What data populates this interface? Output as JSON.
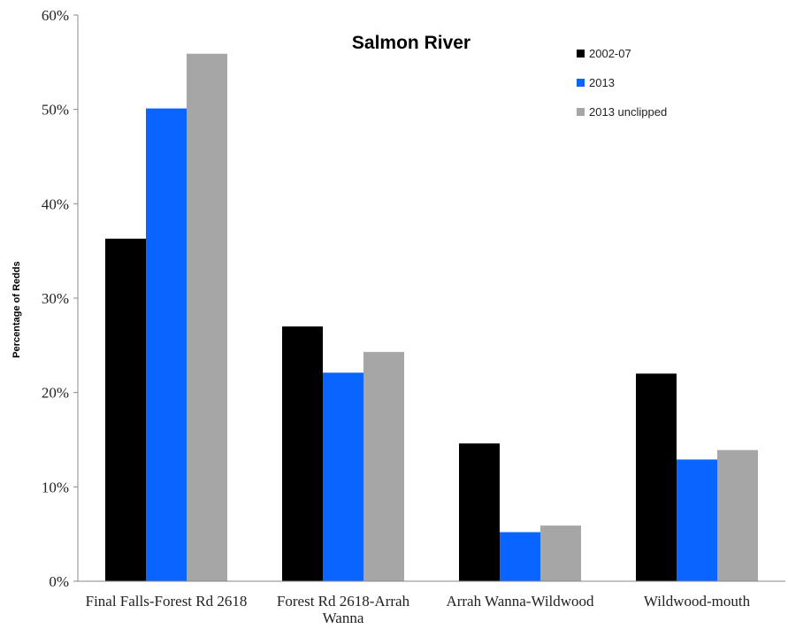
{
  "chart_data": {
    "type": "bar",
    "title": "Salmon River",
    "xlabel": "",
    "ylabel": "Percentage of Redds",
    "ylim": [
      0,
      60
    ],
    "y_ticks": [
      0,
      10,
      20,
      30,
      40,
      50,
      60
    ],
    "y_tick_labels": [
      "0%",
      "10%",
      "20%",
      "30%",
      "40%",
      "50%",
      "60%"
    ],
    "categories": [
      [
        "Final Falls-Forest Rd 2618"
      ],
      [
        "Forest Rd 2618-Arrah",
        "Wanna"
      ],
      [
        "Arrah Wanna-Wildwood"
      ],
      [
        "Wildwood-mouth"
      ]
    ],
    "series": [
      {
        "name": "2002-07",
        "color": "#000000",
        "values": [
          36.3,
          27.0,
          14.6,
          22.0
        ]
      },
      {
        "name": "2013",
        "color": "#0a64ff",
        "values": [
          50.1,
          22.1,
          5.2,
          12.9
        ]
      },
      {
        "name": "2013 unclipped",
        "color": "#a6a6a6",
        "values": [
          55.9,
          24.3,
          5.9,
          13.9
        ]
      }
    ],
    "legend_position": "top-right",
    "grid": false
  }
}
